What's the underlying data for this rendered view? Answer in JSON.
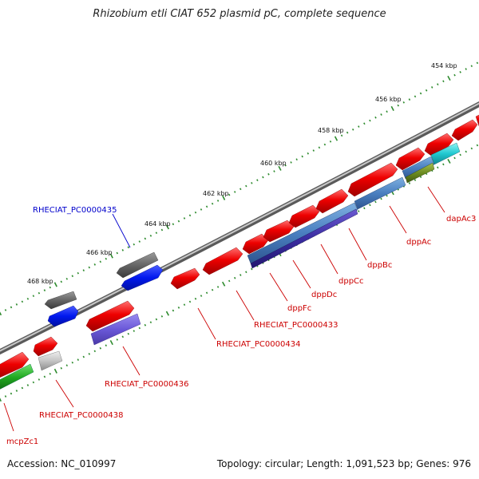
{
  "title": "Rhizobium etli CIAT 652 plasmid pC, complete sequence",
  "footer": {
    "accession": "Accession: NC_010997",
    "summary": "Topology: circular; Length: 1,091,523 bp; Genes: 976"
  },
  "scale_labels": [
    "454 kbp",
    "456 kbp",
    "458 kbp",
    "460 kbp",
    "462 kbp",
    "464 kbp",
    "466 kbp",
    "468 kbp"
  ],
  "gene_labels": [
    {
      "text": "RHECIAT_PC0000435",
      "color": "#0000cc"
    },
    {
      "text": "dapAc3",
      "color": "#cc0000"
    },
    {
      "text": "dppAc",
      "color": "#cc0000"
    },
    {
      "text": "dppBc",
      "color": "#cc0000"
    },
    {
      "text": "dppCc",
      "color": "#cc0000"
    },
    {
      "text": "dppDc",
      "color": "#cc0000"
    },
    {
      "text": "dppFc",
      "color": "#cc0000"
    },
    {
      "text": "RHECIAT_PC0000433",
      "color": "#cc0000"
    },
    {
      "text": "RHECIAT_PC0000434",
      "color": "#cc0000"
    },
    {
      "text": "RHECIAT_PC0000436",
      "color": "#cc0000"
    },
    {
      "text": "RHECIAT_PC0000438",
      "color": "#cc0000"
    },
    {
      "text": "mcpZc1",
      "color": "#cc0000"
    }
  ],
  "colors": {
    "forward_cds": "#ee0000",
    "reverse_cds": "#ee0000",
    "backbone": "#8a8a8a",
    "tick": "#2e8b2e"
  }
}
